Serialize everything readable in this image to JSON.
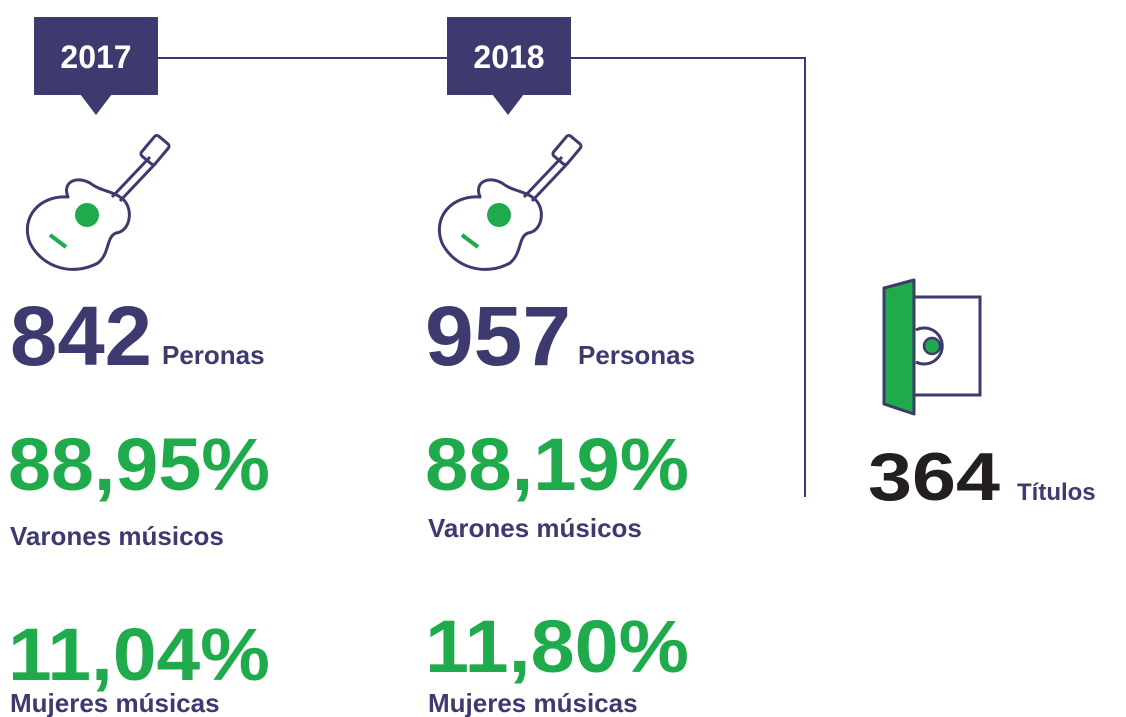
{
  "columns": [
    {
      "year": "2017",
      "count": "842",
      "count_label": "Peronas",
      "men_pct": "88,95%",
      "men_label": "Varones músicos",
      "women_pct": "11,04%",
      "women_label": "Mujeres músicas"
    },
    {
      "year": "2018",
      "count": "957",
      "count_label": "Personas",
      "men_pct": "88,19%",
      "men_label": "Varones músicos",
      "women_pct": "11,80%",
      "women_label": "Mujeres músicas"
    }
  ],
  "titles": {
    "count": "364",
    "label": "Títulos"
  }
}
